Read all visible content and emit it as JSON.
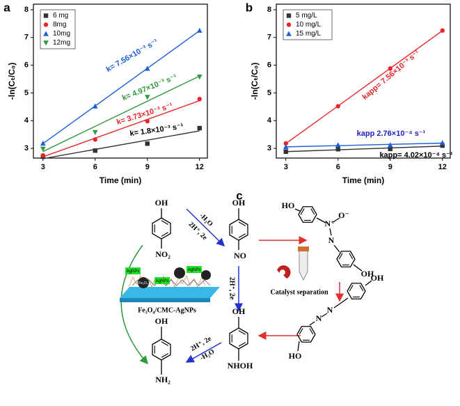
{
  "chart_data": [
    {
      "type": "scatter",
      "panel": "a",
      "x_label": "Time (min)",
      "y_label": "-ln(Cₜ/C₀)",
      "xlim": [
        2.45,
        12.45
      ],
      "ylim": [
        2.65,
        8.2
      ],
      "xticks": [
        3,
        6,
        9,
        12
      ],
      "yticks": [
        3,
        4,
        5,
        6,
        7,
        8
      ],
      "fit": "linear",
      "legend": "top-left",
      "x": [
        3,
        6,
        9,
        12
      ],
      "series": [
        {
          "name": "6 mg",
          "color": "#333333",
          "marker": "square",
          "values": [
            2.7,
            2.92,
            3.17,
            3.73
          ]
        },
        {
          "name": "8mg",
          "color": "#e8262a",
          "marker": "circle",
          "values": [
            2.75,
            3.32,
            3.98,
            4.78
          ]
        },
        {
          "name": "10mg",
          "color": "#1c5fd6",
          "marker": "triangle",
          "values": [
            3.18,
            4.52,
            5.88,
            7.25
          ]
        },
        {
          "name": "12mg",
          "color": "#2e9a3a",
          "marker": "triangle-down",
          "values": [
            2.98,
            3.58,
            4.85,
            5.58
          ]
        }
      ],
      "annotations": [
        {
          "text": "k= 1.8×10⁻³ s⁻¹",
          "color": "#000000"
        },
        {
          "text": "k= 3.73×10⁻³ s⁻¹",
          "color": "#e8262a"
        },
        {
          "text": "k= 7.56×10⁻³ s⁻¹",
          "color": "#1c5fd6"
        },
        {
          "text": "k= 4.97×10⁻³ s⁻¹",
          "color": "#2e9a3a"
        }
      ]
    },
    {
      "type": "scatter",
      "panel": "b",
      "x_label": "Time (min)",
      "y_label": "-ln(Cₜ/C₀)",
      "xlim": [
        2.45,
        12.45
      ],
      "ylim": [
        2.65,
        8.2
      ],
      "xticks": [
        3,
        6,
        9,
        12
      ],
      "yticks": [
        3,
        4,
        5,
        6,
        7,
        8
      ],
      "fit": "linear",
      "legend": "top-left",
      "x": [
        3,
        6,
        9,
        12
      ],
      "series": [
        {
          "name": "5 mg/L",
          "color": "#333333",
          "marker": "square",
          "values": [
            2.88,
            2.97,
            2.98,
            3.1
          ]
        },
        {
          "name": "10 mg/L",
          "color": "#e8262a",
          "marker": "circle",
          "values": [
            3.18,
            4.52,
            5.88,
            7.25
          ]
        },
        {
          "name": "15 mg/L",
          "color": "#1c5fd6",
          "marker": "triangle",
          "values": [
            3.05,
            3.12,
            3.12,
            3.2
          ]
        }
      ],
      "annotations": [
        {
          "text": "kapp= 4.02×10⁻⁴ s⁻¹",
          "color": "#000000"
        },
        {
          "text": "kapp= 7.56×10⁻³ s⁻¹",
          "color": "#e8262a"
        },
        {
          "text": "kapp 2.76×10⁻⁴ s⁻¹",
          "color": "#1c1cc8"
        }
      ]
    }
  ],
  "diagram": {
    "panel": "c",
    "nitrophenol": {
      "top": "OH",
      "bottom": "NO₂"
    },
    "nitrosophenol": {
      "top": "OH",
      "bottom": "NO"
    },
    "azoxy": {
      "left": "HO",
      "n1": "N⁺",
      "o": "O⁻",
      "n2": "N",
      "right": "OH"
    },
    "azo": {
      "right": "OH",
      "n1": "N",
      "n2": "N",
      "left": "HO"
    },
    "hydroxylamine": {
      "top": "OH",
      "bottom": "NHOH"
    },
    "aminophenol": {
      "top": "OH",
      "bottom": "NH₂"
    },
    "step1": [
      "-H₂O",
      "2H⁺, 2e"
    ],
    "step2": "2H⁺, 2e",
    "step3": [
      "2H⁺, 2e",
      "-H₂O"
    ],
    "catalyst_tags": [
      "AgNPs",
      "AgNPs",
      "AgNPs",
      "Fe₃O₄"
    ],
    "catalyst_label": "Fe₃O₄/CMC-AgNPs",
    "separation_label": "Catalyst separation"
  }
}
